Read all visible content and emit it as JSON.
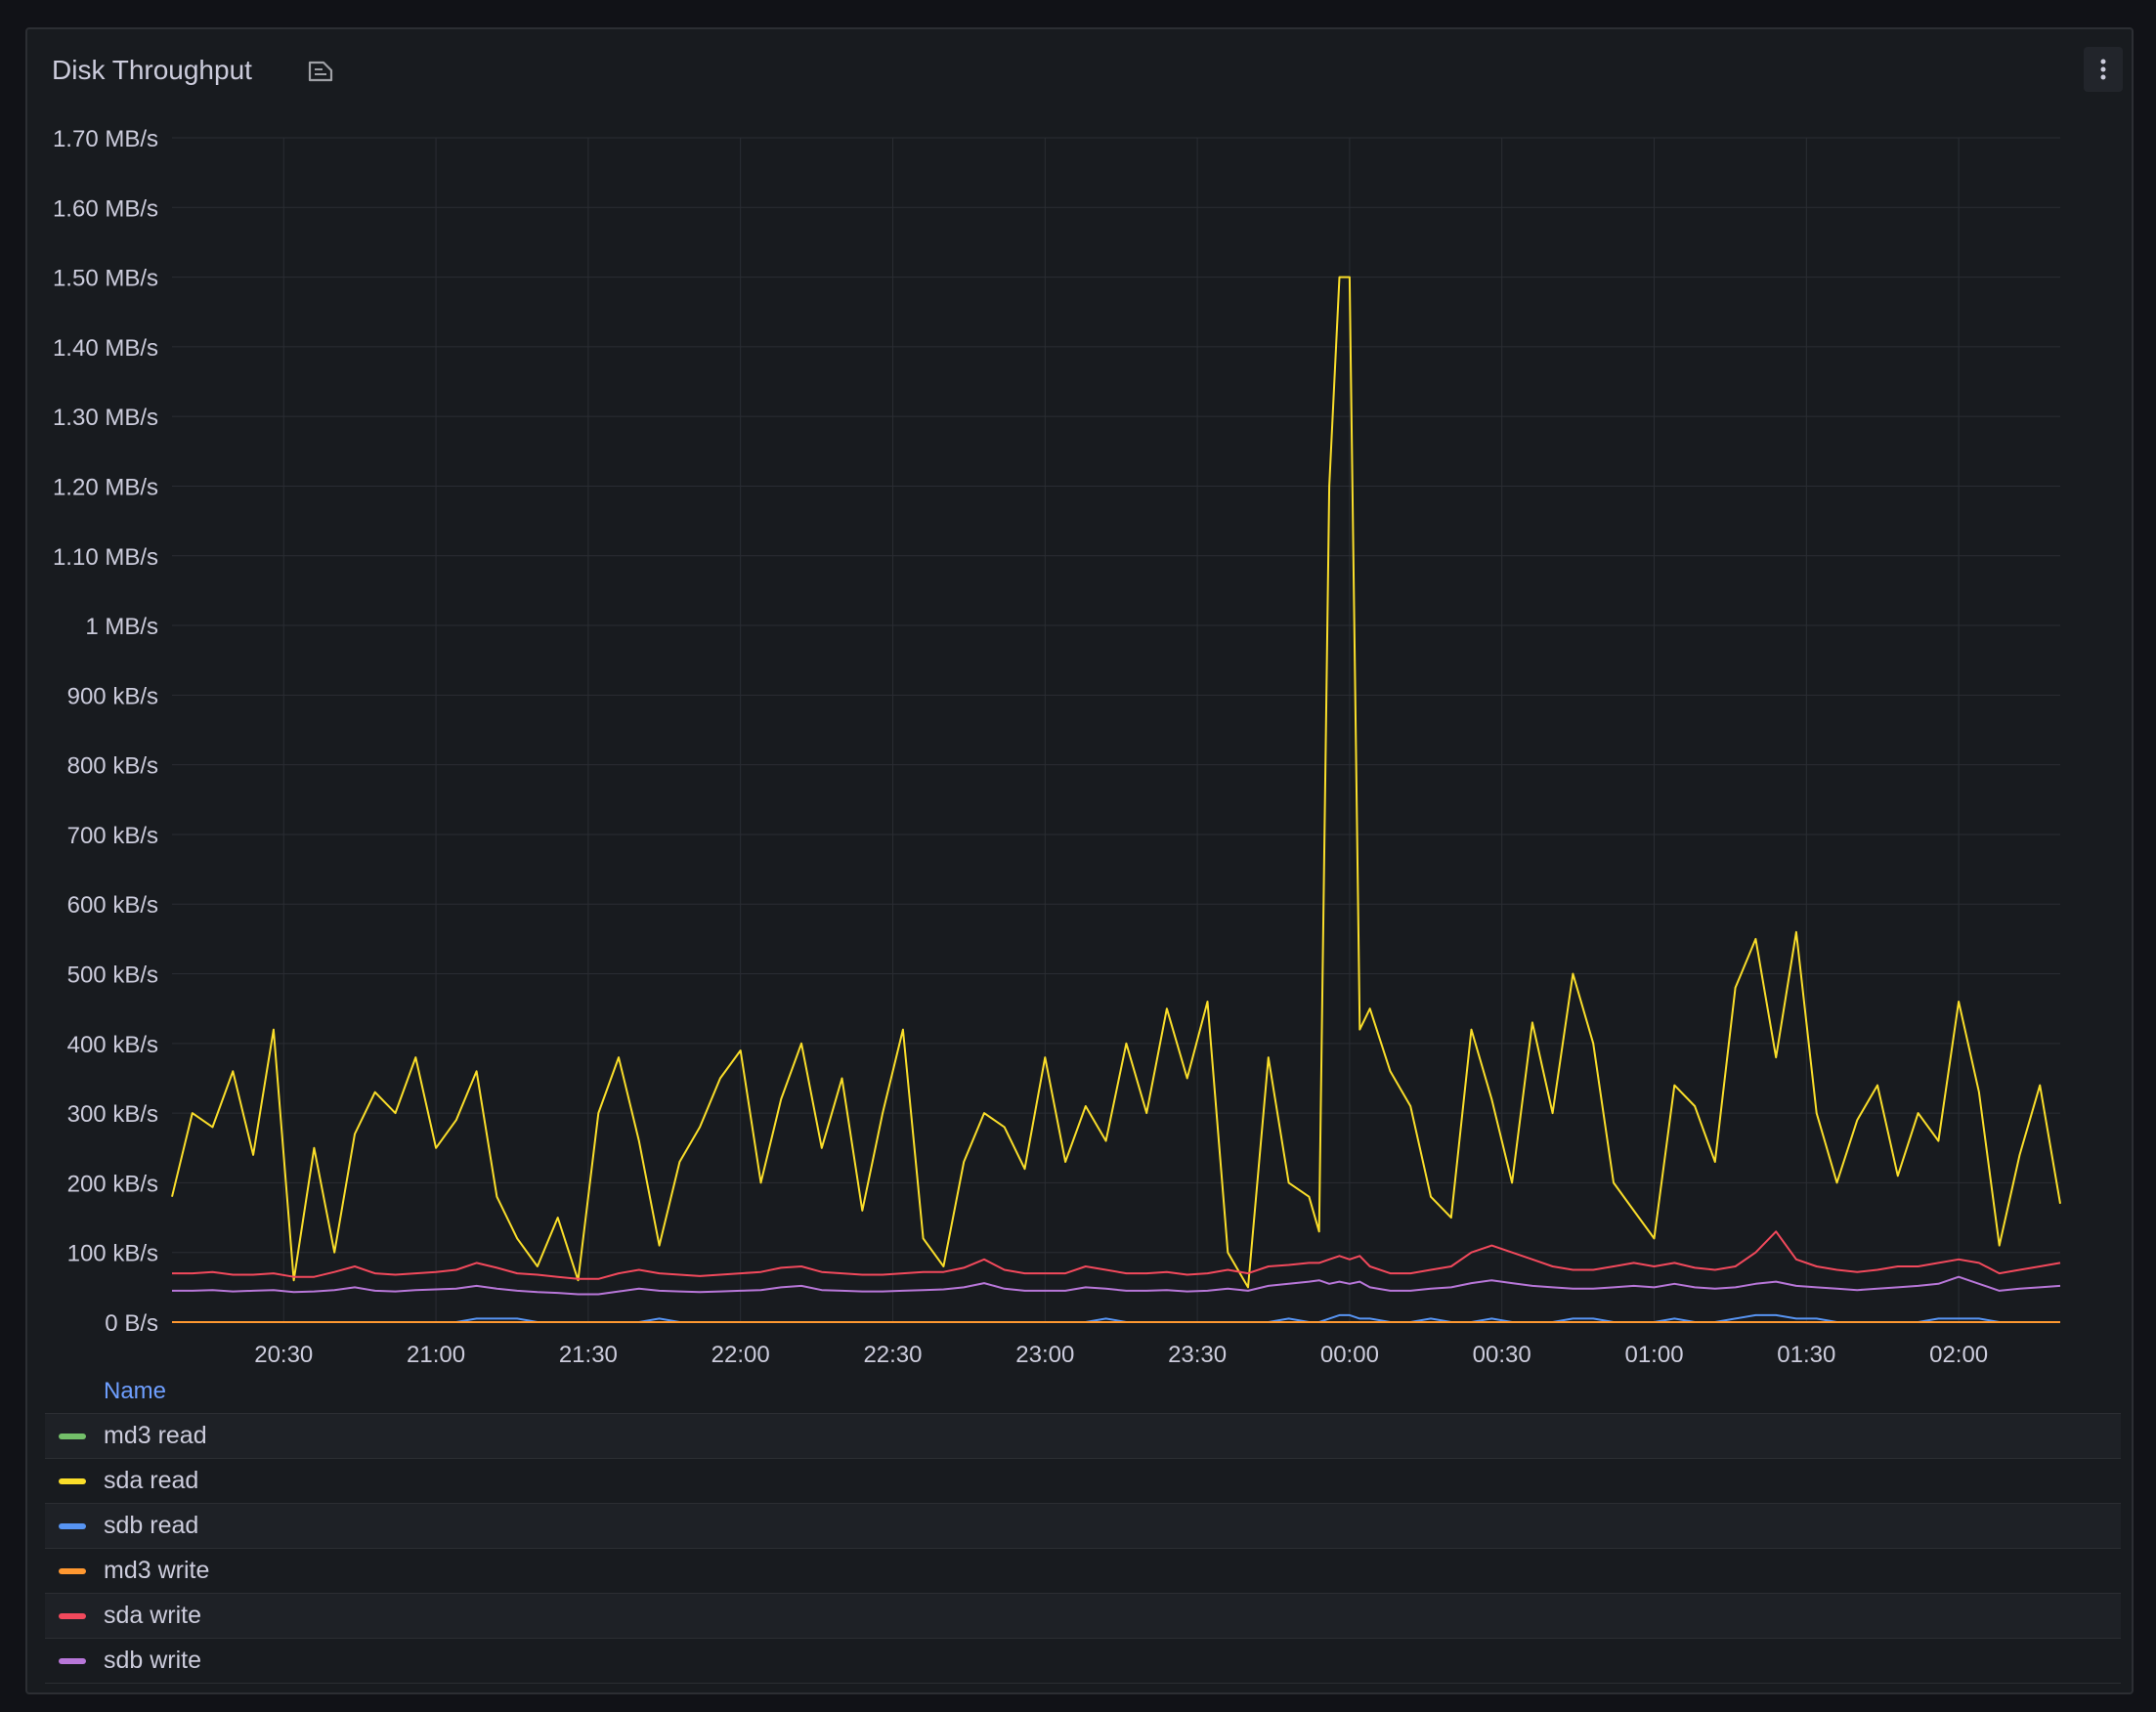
{
  "panel": {
    "title": "Disk Throughput",
    "icons": {
      "description": "description-icon",
      "menu": "kebab-menu-icon"
    }
  },
  "legend": {
    "header": "Name",
    "items": [
      {
        "label": "md3 read",
        "color": "#73bf69"
      },
      {
        "label": "sda read",
        "color": "#fade2a"
      },
      {
        "label": "sdb read",
        "color": "#5794f2"
      },
      {
        "label": "md3 write",
        "color": "#ff9830"
      },
      {
        "label": "sda write",
        "color": "#f2495c"
      },
      {
        "label": "sdb write",
        "color": "#b877d9"
      }
    ]
  },
  "chart_data": {
    "type": "line",
    "title": "Disk Throughput",
    "x_range": [
      "20:08",
      "02:20"
    ],
    "y_range_kBps": [
      0,
      1700
    ],
    "y_tick_values": [
      0,
      100,
      200,
      300,
      400,
      500,
      600,
      700,
      800,
      900,
      1000,
      1100,
      1200,
      1300,
      1400,
      1500,
      1600,
      1700
    ],
    "y_tick_labels": [
      "0 B/s",
      "100 kB/s",
      "200 kB/s",
      "300 kB/s",
      "400 kB/s",
      "500 kB/s",
      "600 kB/s",
      "700 kB/s",
      "800 kB/s",
      "900 kB/s",
      "1 MB/s",
      "1.10 MB/s",
      "1.20 MB/s",
      "1.30 MB/s",
      "1.40 MB/s",
      "1.50 MB/s",
      "1.60 MB/s",
      "1.70 MB/s"
    ],
    "x_tick_labels": [
      "20:30",
      "21:00",
      "21:30",
      "22:00",
      "22:30",
      "23:00",
      "23:30",
      "00:00",
      "00:30",
      "01:00",
      "01:30",
      "02:00"
    ],
    "x_tick_minutes": [
      22,
      52,
      82,
      112,
      142,
      172,
      202,
      232,
      262,
      292,
      322,
      352
    ],
    "x_max_minutes": 372,
    "grid": true,
    "legend_placement": "bottom",
    "x_minutes": [
      0,
      4,
      8,
      12,
      16,
      20,
      24,
      28,
      32,
      36,
      40,
      44,
      48,
      52,
      56,
      60,
      64,
      68,
      72,
      76,
      80,
      84,
      88,
      92,
      96,
      100,
      104,
      108,
      112,
      116,
      120,
      124,
      128,
      132,
      136,
      140,
      144,
      148,
      152,
      156,
      160,
      164,
      168,
      172,
      176,
      180,
      184,
      188,
      192,
      196,
      200,
      204,
      208,
      212,
      216,
      220,
      224,
      226,
      228,
      230,
      232,
      234,
      236,
      240,
      244,
      248,
      252,
      256,
      260,
      264,
      268,
      272,
      276,
      280,
      284,
      288,
      292,
      296,
      300,
      304,
      308,
      312,
      316,
      320,
      324,
      328,
      332,
      336,
      340,
      344,
      348,
      352,
      356,
      360,
      364,
      368,
      372
    ],
    "series": [
      {
        "name": "md3 read",
        "color": "#73bf69",
        "values": [
          0,
          0,
          0,
          0,
          0,
          0,
          0,
          0,
          0,
          0,
          0,
          0,
          0,
          0,
          0,
          0,
          0,
          0,
          0,
          0,
          0,
          0,
          0,
          0,
          0,
          0,
          0,
          0,
          0,
          0,
          0,
          0,
          0,
          0,
          0,
          0,
          0,
          0,
          0,
          0,
          0,
          0,
          0,
          0,
          0,
          0,
          0,
          0,
          0,
          0,
          0,
          0,
          0,
          0,
          0,
          0,
          0,
          0,
          0,
          0,
          0,
          0,
          0,
          0,
          0,
          0,
          0,
          0,
          0,
          0,
          0,
          0,
          0,
          0,
          0,
          0,
          0,
          0,
          0,
          0,
          0,
          0,
          0,
          0,
          0,
          0,
          0,
          0,
          0,
          0,
          0,
          0,
          0,
          0,
          0,
          0,
          0
        ]
      },
      {
        "name": "sda read",
        "color": "#fade2a",
        "values": [
          180,
          300,
          280,
          360,
          240,
          420,
          60,
          250,
          100,
          270,
          330,
          300,
          380,
          250,
          290,
          360,
          180,
          120,
          80,
          150,
          60,
          300,
          380,
          260,
          110,
          230,
          280,
          350,
          390,
          200,
          320,
          400,
          250,
          350,
          160,
          300,
          420,
          120,
          80,
          230,
          300,
          280,
          220,
          380,
          230,
          310,
          260,
          400,
          300,
          450,
          350,
          460,
          100,
          50,
          380,
          200,
          180,
          130,
          1200,
          1500,
          1500,
          420,
          450,
          360,
          310,
          180,
          150,
          420,
          320,
          200,
          430,
          300,
          500,
          400,
          200,
          160,
          120,
          340,
          310,
          230,
          480,
          550,
          380,
          560,
          300,
          200,
          290,
          340,
          210,
          300,
          260,
          460,
          330,
          110,
          240,
          340,
          170
        ]
      },
      {
        "name": "sdb read",
        "color": "#5794f2",
        "values": [
          0,
          0,
          0,
          0,
          0,
          0,
          0,
          0,
          0,
          0,
          0,
          0,
          0,
          0,
          0,
          5,
          5,
          5,
          0,
          0,
          0,
          0,
          0,
          0,
          5,
          0,
          0,
          0,
          0,
          0,
          0,
          0,
          0,
          0,
          0,
          0,
          0,
          0,
          0,
          0,
          0,
          0,
          0,
          0,
          0,
          0,
          5,
          0,
          0,
          0,
          0,
          0,
          0,
          0,
          0,
          5,
          0,
          0,
          5,
          10,
          10,
          5,
          5,
          0,
          0,
          5,
          0,
          0,
          5,
          0,
          0,
          0,
          5,
          5,
          0,
          0,
          0,
          5,
          0,
          0,
          5,
          10,
          10,
          5,
          5,
          0,
          0,
          0,
          0,
          0,
          5,
          5,
          5,
          0,
          0,
          0,
          0
        ]
      },
      {
        "name": "md3 write",
        "color": "#ff9830",
        "values": [
          0,
          0,
          0,
          0,
          0,
          0,
          0,
          0,
          0,
          0,
          0,
          0,
          0,
          0,
          0,
          0,
          0,
          0,
          0,
          0,
          0,
          0,
          0,
          0,
          0,
          0,
          0,
          0,
          0,
          0,
          0,
          0,
          0,
          0,
          0,
          0,
          0,
          0,
          0,
          0,
          0,
          0,
          0,
          0,
          0,
          0,
          0,
          0,
          0,
          0,
          0,
          0,
          0,
          0,
          0,
          0,
          0,
          0,
          0,
          0,
          0,
          0,
          0,
          0,
          0,
          0,
          0,
          0,
          0,
          0,
          0,
          0,
          0,
          0,
          0,
          0,
          0,
          0,
          0,
          0,
          0,
          0,
          0,
          0,
          0,
          0,
          0,
          0,
          0,
          0,
          0,
          0,
          0,
          0,
          0,
          0,
          0
        ]
      },
      {
        "name": "sda write",
        "color": "#f2495c",
        "values": [
          70,
          70,
          72,
          68,
          68,
          70,
          65,
          65,
          72,
          80,
          70,
          68,
          70,
          72,
          75,
          85,
          78,
          70,
          68,
          65,
          62,
          62,
          70,
          75,
          70,
          68,
          66,
          68,
          70,
          72,
          78,
          80,
          72,
          70,
          68,
          68,
          70,
          72,
          72,
          78,
          90,
          75,
          70,
          70,
          70,
          80,
          75,
          70,
          70,
          72,
          68,
          70,
          75,
          70,
          80,
          82,
          85,
          85,
          90,
          95,
          90,
          95,
          80,
          70,
          70,
          75,
          80,
          100,
          110,
          100,
          90,
          80,
          75,
          75,
          80,
          85,
          80,
          85,
          78,
          75,
          80,
          100,
          130,
          90,
          80,
          75,
          72,
          75,
          80,
          80,
          85,
          90,
          85,
          70,
          75,
          80,
          85
        ]
      },
      {
        "name": "sdb write",
        "color": "#b877d9",
        "values": [
          45,
          45,
          46,
          44,
          45,
          46,
          43,
          44,
          46,
          50,
          45,
          44,
          46,
          47,
          48,
          52,
          48,
          45,
          43,
          42,
          40,
          40,
          44,
          48,
          45,
          44,
          43,
          44,
          45,
          46,
          50,
          52,
          46,
          45,
          44,
          44,
          45,
          46,
          47,
          50,
          56,
          48,
          45,
          45,
          45,
          50,
          48,
          45,
          45,
          46,
          44,
          45,
          48,
          45,
          52,
          55,
          58,
          60,
          55,
          58,
          55,
          58,
          50,
          45,
          45,
          48,
          50,
          56,
          60,
          56,
          52,
          50,
          48,
          48,
          50,
          52,
          50,
          55,
          50,
          48,
          50,
          55,
          58,
          52,
          50,
          48,
          46,
          48,
          50,
          52,
          55,
          65,
          55,
          45,
          48,
          50,
          52
        ]
      }
    ]
  }
}
